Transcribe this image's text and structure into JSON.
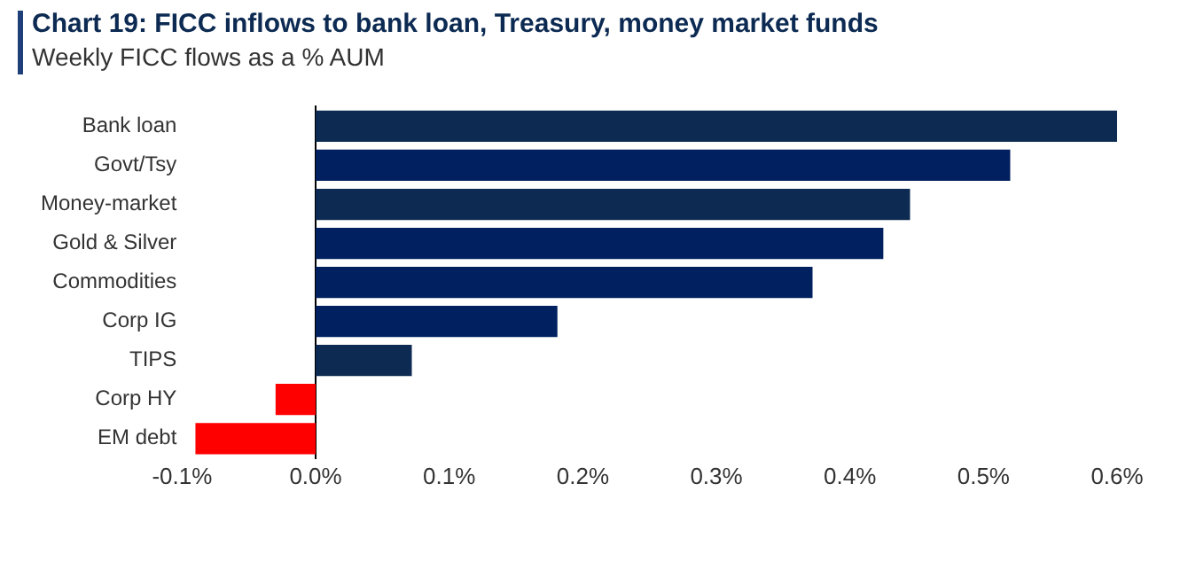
{
  "chart_data": {
    "type": "bar",
    "orientation": "horizontal",
    "title": "Chart 19: FICC inflows to bank loan, Treasury, money market funds",
    "subtitle": "Weekly FICC flows as a % AUM",
    "categories": [
      "Bank loan",
      "Govt/Tsy",
      "Money-market",
      "Gold & Silver",
      "Commodities",
      "Corp IG",
      "TIPS",
      "Corp HY",
      "EM debt"
    ],
    "values": [
      0.6,
      0.52,
      0.445,
      0.425,
      0.372,
      0.181,
      0.072,
      -0.03,
      -0.09
    ],
    "colors": [
      "#0c2a52",
      "#002060",
      "#0c2a52",
      "#002060",
      "#002060",
      "#002060",
      "#0c2a52",
      "#ff0000",
      "#ff0000"
    ],
    "xlim": [
      -0.1,
      0.6
    ],
    "xticks": [
      {
        "value": -0.1,
        "label": "-0.1%"
      },
      {
        "value": 0,
        "label": "0.0%"
      },
      {
        "value": 0.1,
        "label": "0.1%"
      },
      {
        "value": 0.2,
        "label": "0.2%"
      },
      {
        "value": 0.3,
        "label": "0.3%"
      },
      {
        "value": 0.4,
        "label": "0.4%"
      },
      {
        "value": 0.5,
        "label": "0.5%"
      },
      {
        "value": 0.6,
        "label": "0.6%"
      }
    ],
    "legend": false
  }
}
